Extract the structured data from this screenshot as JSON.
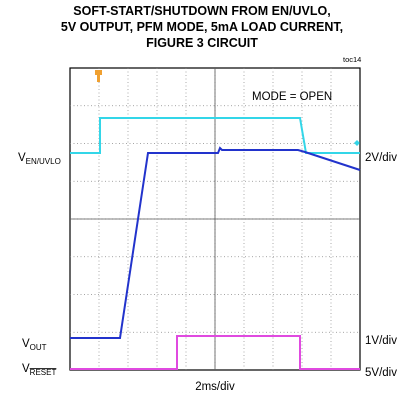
{
  "title": [
    "SOFT-START/SHUTDOWN FROM EN/UVLO,",
    "5V OUTPUT, PFM MODE, 5mA LOAD CURRENT,",
    "FIGURE 3 CIRCUIT"
  ],
  "figure_id": "toc14",
  "annotation": "MODE = OPEN",
  "channels": [
    {
      "label": "V",
      "sub": "EN/UVLO",
      "scale": "2V/div"
    },
    {
      "label": "V",
      "sub": "OUT",
      "scale": "1V/div"
    },
    {
      "label": "V",
      "sub": "RESET",
      "scale": "5V/div"
    }
  ],
  "timebase": "2ms/div"
}
